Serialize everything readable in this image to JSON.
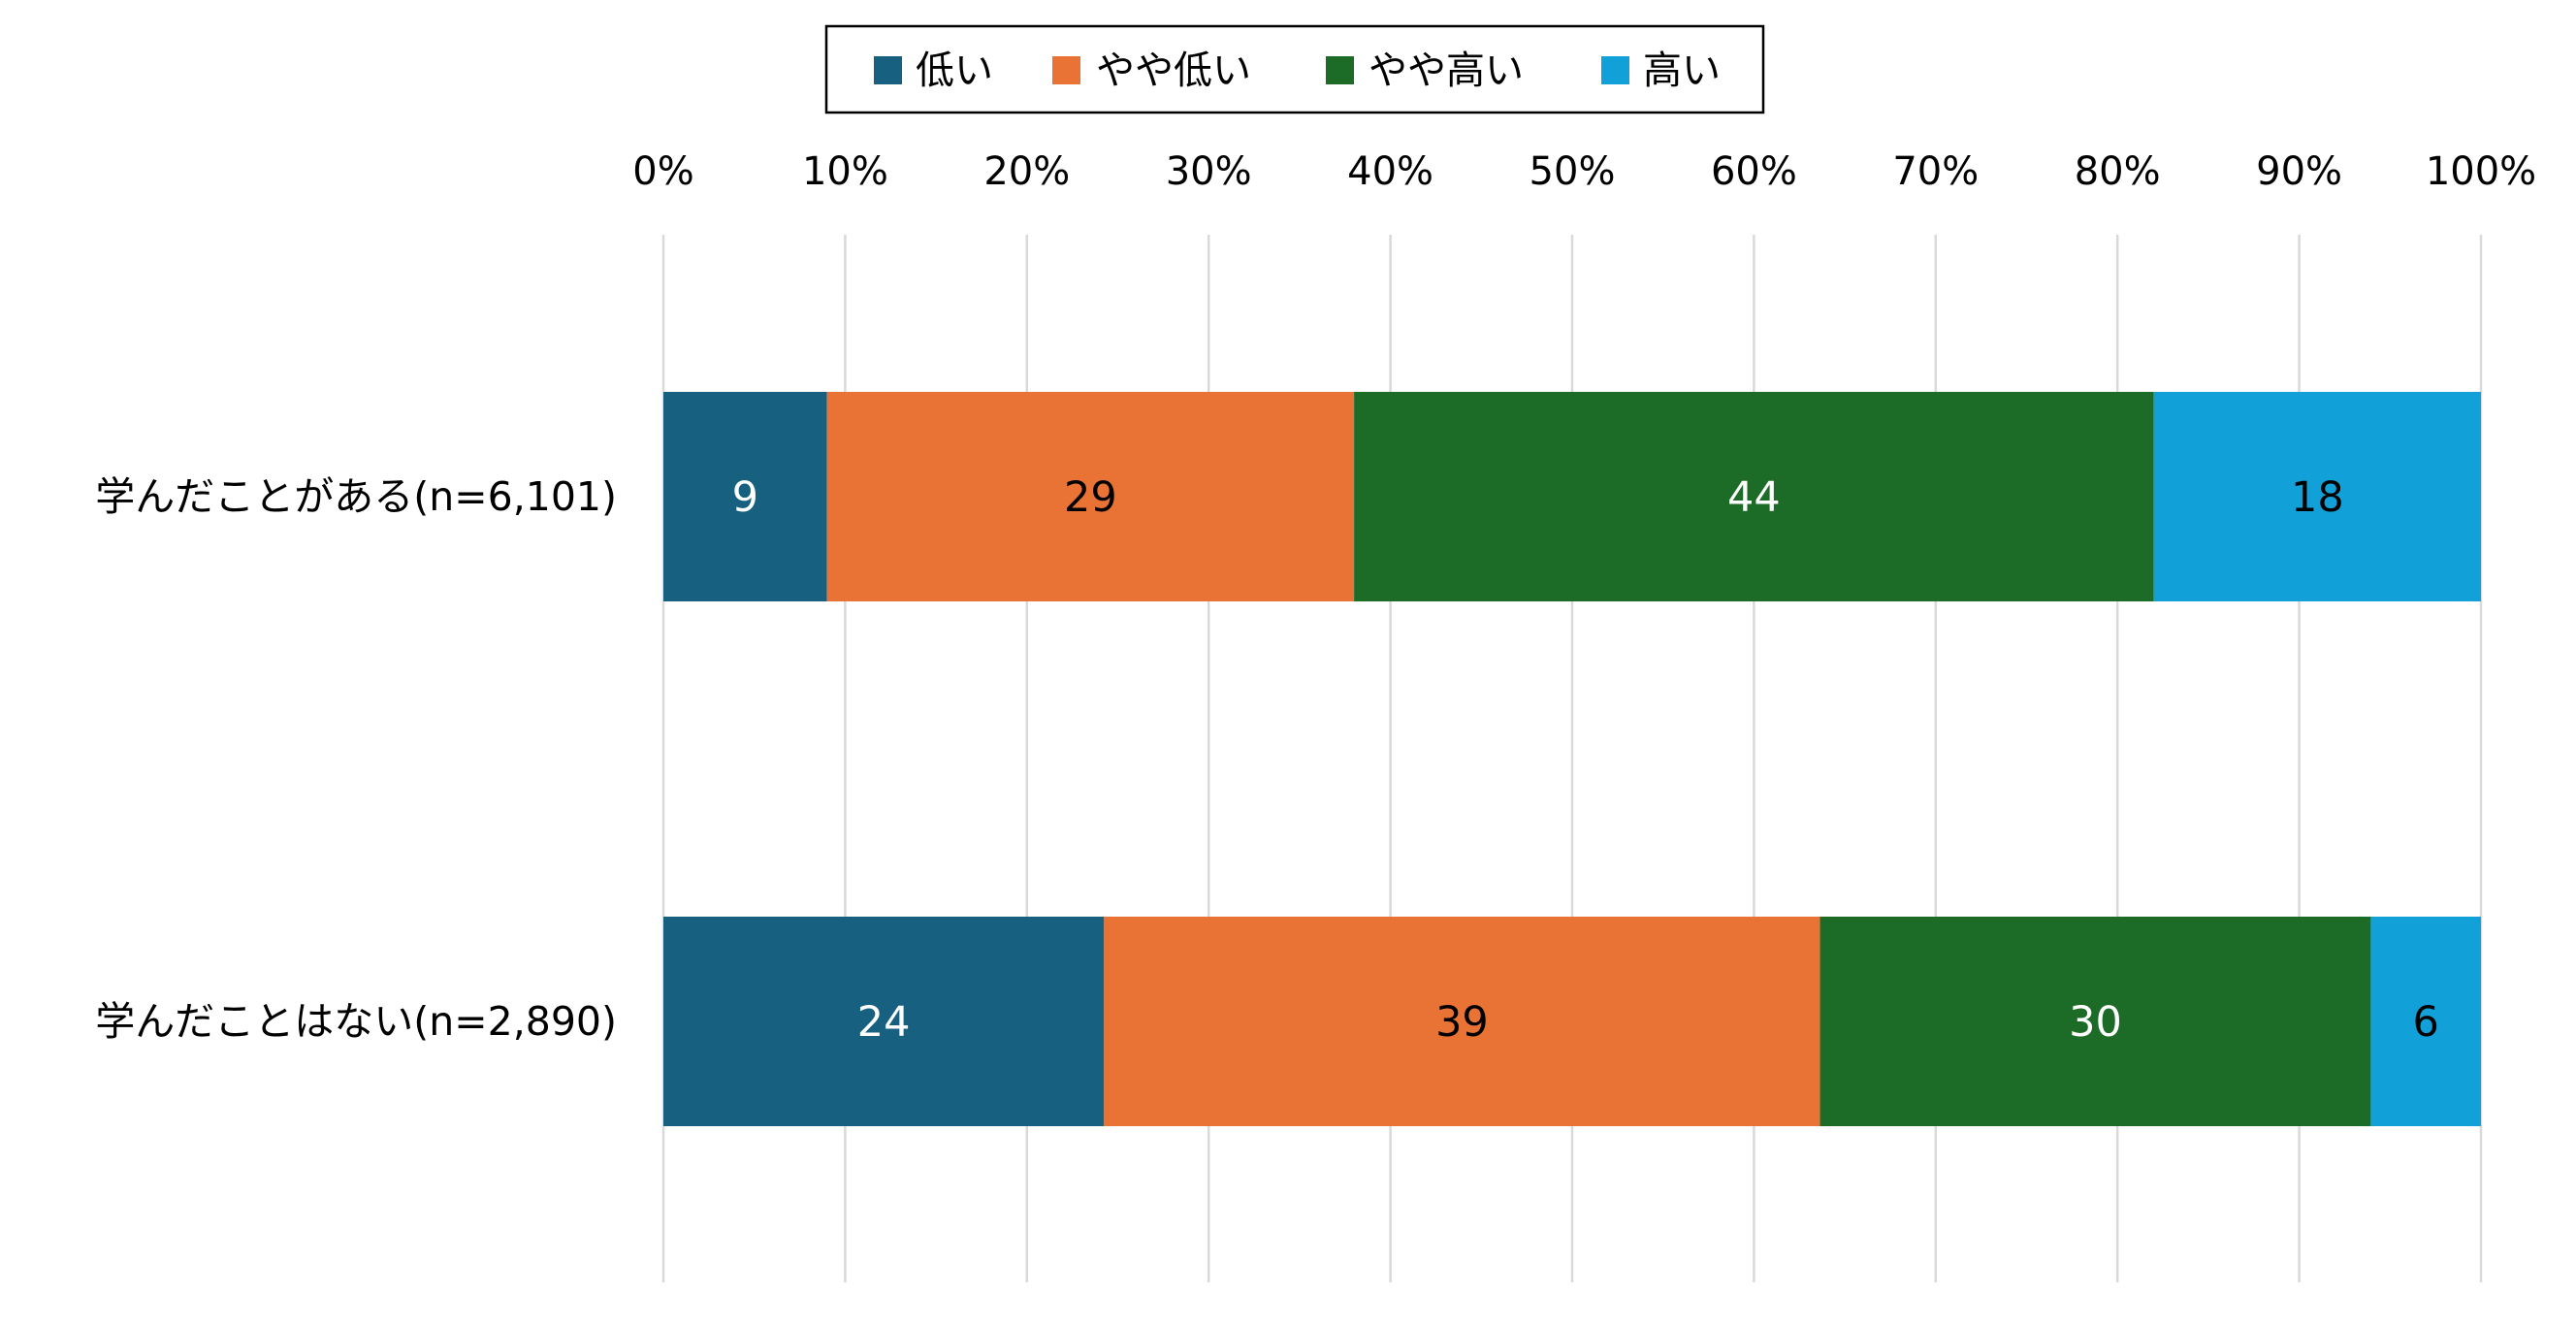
{
  "chart_data": {
    "type": "bar",
    "orientation": "horizontal",
    "stacked": "percent",
    "categories": [
      "学んだことがある(n=6,101)",
      "学んだことはない(n=2,890)"
    ],
    "series": [
      {
        "name": "低い",
        "values": [
          9,
          24
        ],
        "color": "#17607f",
        "label_color": "#ffffff"
      },
      {
        "name": "やや低い",
        "values": [
          29,
          39
        ],
        "color": "#e97334",
        "label_color": "#000000"
      },
      {
        "name": "やや高い",
        "values": [
          44,
          30
        ],
        "color": "#1c6b27",
        "label_color": "#ffffff"
      },
      {
        "name": "高い",
        "values": [
          18,
          6
        ],
        "color": "#11a0d8",
        "label_color": "#000000"
      }
    ],
    "x_ticks": [
      "0%",
      "10%",
      "20%",
      "30%",
      "40%",
      "50%",
      "60%",
      "70%",
      "80%",
      "90%",
      "100%"
    ],
    "xlim": [
      0,
      100
    ],
    "grid": "vertical",
    "legend_position": "top",
    "title": "",
    "xlabel": "",
    "ylabel": ""
  }
}
